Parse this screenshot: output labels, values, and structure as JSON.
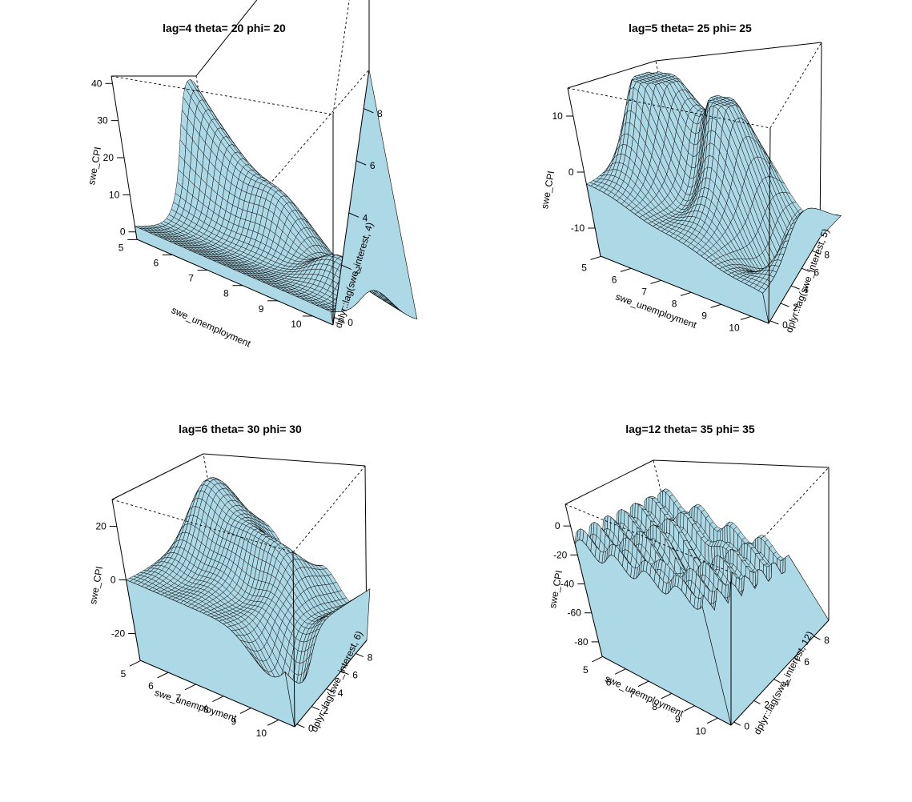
{
  "figure": {
    "background": "#ffffff",
    "surface_color": "#add8e6",
    "mesh_color": "#000000"
  },
  "chart_data": [
    {
      "type": "surface",
      "title": "lag=4 theta= 20 phi= 20",
      "xlabel": "swe_unemployment",
      "ylabel": "dplyr::lag(swe_interest, 4)",
      "zlabel": "swe_CPI",
      "x_ticks": [
        "5",
        "6",
        "7",
        "8",
        "9",
        "10"
      ],
      "y_ticks": [
        "0",
        "2",
        "4",
        "6",
        "8"
      ],
      "z_ticks": [
        "0",
        "10",
        "20",
        "30",
        "40"
      ],
      "theta": 20,
      "phi": 20,
      "xlim": [
        5,
        10.5
      ],
      "ylim": [
        0,
        9
      ],
      "zlim": [
        -2,
        42
      ]
    },
    {
      "type": "surface",
      "title": "lag=5 theta= 25 phi= 25",
      "xlabel": "swe_unemployment",
      "ylabel": "dplyr::lag(swe_interest, 5)",
      "zlabel": "swe_CPI",
      "x_ticks": [
        "5",
        "6",
        "7",
        "8",
        "9",
        "10"
      ],
      "y_ticks": [
        "0",
        "2",
        "4",
        "6",
        "8"
      ],
      "z_ticks": [
        "-10",
        "0",
        "10"
      ],
      "theta": 25,
      "phi": 25,
      "xlim": [
        5,
        10.5
      ],
      "ylim": [
        0,
        9
      ],
      "zlim": [
        -15,
        15
      ]
    },
    {
      "type": "surface",
      "title": "lag=6 theta= 30 phi= 30",
      "xlabel": "swe_unemployment",
      "ylabel": "dplyr::lag(swe_interest, 6)",
      "zlabel": "swe_CPI",
      "x_ticks": [
        "5",
        "6",
        "7",
        "8",
        "9",
        "10"
      ],
      "y_ticks": [
        "0",
        "2",
        "4",
        "6",
        "8"
      ],
      "z_ticks": [
        "-20",
        "0",
        "20"
      ],
      "theta": 30,
      "phi": 30,
      "xlim": [
        5,
        10.5
      ],
      "ylim": [
        0,
        9
      ],
      "zlim": [
        -30,
        30
      ]
    },
    {
      "type": "surface",
      "title": "lag=12 theta= 35 phi= 35",
      "xlabel": "swe_unemployment",
      "ylabel": "dplyr::lag(swe_interest, 12)",
      "zlabel": "swe_CPI",
      "x_ticks": [
        "5",
        "6",
        "7",
        "8",
        "9",
        "10"
      ],
      "y_ticks": [
        "0",
        "2",
        "4",
        "6",
        "8"
      ],
      "z_ticks": [
        "-80",
        "-60",
        "-40",
        "-20",
        "0"
      ],
      "theta": 35,
      "phi": 35,
      "xlim": [
        5,
        10.5
      ],
      "ylim": [
        0,
        9
      ],
      "zlim": [
        -90,
        15
      ]
    }
  ]
}
